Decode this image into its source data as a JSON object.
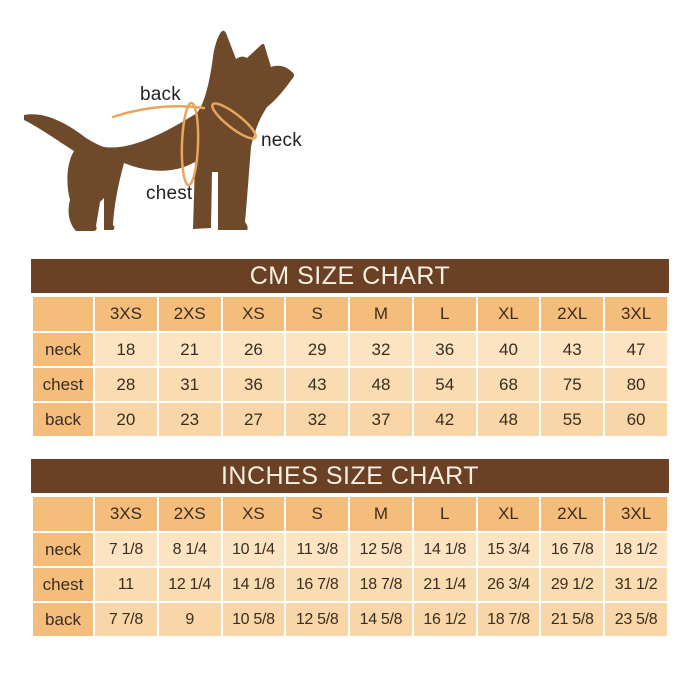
{
  "figure": {
    "labels": {
      "back": "back",
      "neck": "neck",
      "chest": "chest"
    }
  },
  "tables": [
    {
      "title": "CM SIZE CHART",
      "sizes": [
        "3XS",
        "2XS",
        "XS",
        "S",
        "M",
        "L",
        "XL",
        "2XL",
        "3XL"
      ],
      "rows": [
        {
          "label": "neck",
          "values": [
            "18",
            "21",
            "26",
            "29",
            "32",
            "36",
            "40",
            "43",
            "47"
          ]
        },
        {
          "label": "chest",
          "values": [
            "28",
            "31",
            "36",
            "43",
            "48",
            "54",
            "68",
            "75",
            "80"
          ]
        },
        {
          "label": "back",
          "values": [
            "20",
            "23",
            "27",
            "32",
            "37",
            "42",
            "48",
            "55",
            "60"
          ]
        }
      ]
    },
    {
      "title": "INCHES SIZE CHART",
      "sizes": [
        "3XS",
        "2XS",
        "XS",
        "S",
        "M",
        "L",
        "XL",
        "2XL",
        "3XL"
      ],
      "rows": [
        {
          "label": "neck",
          "values": [
            "7 1/8",
            "8 1/4",
            "10 1/4",
            "11 3/8",
            "12 5/8",
            "14 1/8",
            "15 3/4",
            "16 7/8",
            "18 1/2"
          ]
        },
        {
          "label": "chest",
          "values": [
            "11",
            "12 1/4",
            "14 1/8",
            "16 7/8",
            "18 7/8",
            "21 1/4",
            "26 3/4",
            "29 1/2",
            "31 1/2"
          ]
        },
        {
          "label": "back",
          "values": [
            "7 7/8",
            "9",
            "10 5/8",
            "12 5/8",
            "14 5/8",
            "16 1/2",
            "18 7/8",
            "21 5/8",
            "23 5/8"
          ]
        }
      ]
    }
  ],
  "chart_data": [
    {
      "type": "table",
      "title": "CM SIZE CHART",
      "columns": [
        "3XS",
        "2XS",
        "XS",
        "S",
        "M",
        "L",
        "XL",
        "2XL",
        "3XL"
      ],
      "series": [
        {
          "name": "neck",
          "values": [
            18,
            21,
            26,
            29,
            32,
            36,
            40,
            43,
            47
          ]
        },
        {
          "name": "chest",
          "values": [
            28,
            31,
            36,
            43,
            48,
            54,
            68,
            75,
            80
          ]
        },
        {
          "name": "back",
          "values": [
            20,
            23,
            27,
            32,
            37,
            42,
            48,
            55,
            60
          ]
        }
      ]
    },
    {
      "type": "table",
      "title": "INCHES SIZE CHART",
      "columns": [
        "3XS",
        "2XS",
        "XS",
        "S",
        "M",
        "L",
        "XL",
        "2XL",
        "3XL"
      ],
      "series": [
        {
          "name": "neck",
          "values": [
            7.125,
            8.25,
            10.25,
            11.375,
            12.625,
            14.125,
            15.75,
            16.875,
            18.5
          ]
        },
        {
          "name": "chest",
          "values": [
            11,
            12.25,
            14.125,
            16.875,
            18.875,
            21.25,
            26.75,
            29.5,
            31.5
          ]
        },
        {
          "name": "back",
          "values": [
            7.875,
            9,
            10.625,
            12.625,
            14.625,
            16.5,
            18.875,
            21.625,
            23.625
          ]
        }
      ]
    }
  ],
  "colors": {
    "page-bg": "#ffffff",
    "banner-bg": "#6a4124",
    "banner-text": "#f7efe2",
    "cell-head": "#f5bd7c",
    "row1": "#fce4c3",
    "row2": "#fadcb2",
    "row3": "#f8d6a7",
    "cell-text": "#3a2d20",
    "dog-body": "#6e4a2b",
    "measure-line": "#e7a55e",
    "figure-label": "#262220"
  }
}
